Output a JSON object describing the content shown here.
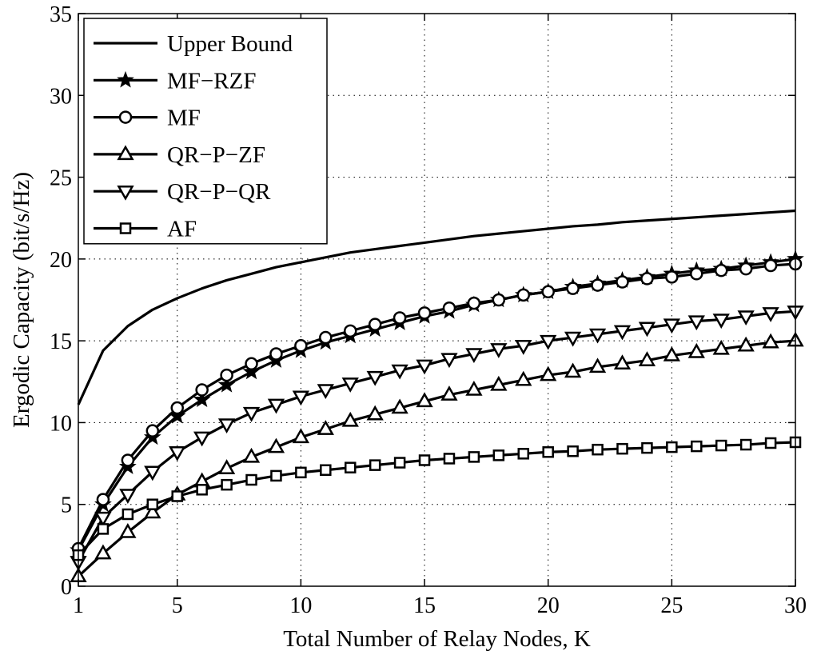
{
  "chart_data": {
    "type": "line",
    "xlabel": "Total Number of Relay Nodes, K",
    "ylabel": "Ergodic Capacity (bit/s/Hz)",
    "xlim": [
      1,
      30
    ],
    "ylim": [
      0,
      35
    ],
    "xticks": [
      1,
      5,
      10,
      15,
      20,
      25,
      30
    ],
    "yticks": [
      0,
      5,
      10,
      15,
      20,
      25,
      30,
      35
    ],
    "grid": true,
    "legend_position": "top-left",
    "x": [
      1,
      2,
      3,
      4,
      5,
      6,
      7,
      8,
      9,
      10,
      11,
      12,
      13,
      14,
      15,
      16,
      17,
      18,
      19,
      20,
      21,
      22,
      23,
      24,
      25,
      26,
      27,
      28,
      29,
      30
    ],
    "series": [
      {
        "name": "Upper Bound",
        "marker": "none",
        "values": [
          11.1,
          14.4,
          15.9,
          16.9,
          17.6,
          18.2,
          18.7,
          19.1,
          19.5,
          19.8,
          20.1,
          20.4,
          20.6,
          20.8,
          21.0,
          21.2,
          21.4,
          21.55,
          21.7,
          21.85,
          22.0,
          22.1,
          22.25,
          22.35,
          22.45,
          22.55,
          22.65,
          22.75,
          22.85,
          22.95
        ]
      },
      {
        "name": "MF−RZF",
        "marker": "star",
        "values": [
          2.2,
          5.0,
          7.3,
          9.1,
          10.4,
          11.4,
          12.3,
          13.1,
          13.8,
          14.4,
          14.9,
          15.3,
          15.7,
          16.1,
          16.5,
          16.8,
          17.2,
          17.5,
          17.8,
          18.0,
          18.3,
          18.5,
          18.7,
          18.9,
          19.1,
          19.3,
          19.4,
          19.6,
          19.8,
          20.0
        ]
      },
      {
        "name": "MF",
        "marker": "circle",
        "values": [
          2.3,
          5.3,
          7.7,
          9.5,
          10.9,
          12.0,
          12.9,
          13.6,
          14.2,
          14.7,
          15.2,
          15.6,
          16.0,
          16.4,
          16.7,
          17.0,
          17.3,
          17.5,
          17.8,
          18.0,
          18.2,
          18.4,
          18.6,
          18.8,
          18.9,
          19.1,
          19.3,
          19.4,
          19.6,
          19.7
        ]
      },
      {
        "name": "QR−P−ZF",
        "marker": "triangle-up",
        "values": [
          0.6,
          2.0,
          3.3,
          4.5,
          5.6,
          6.4,
          7.2,
          7.9,
          8.5,
          9.1,
          9.6,
          10.1,
          10.5,
          10.9,
          11.3,
          11.7,
          12.0,
          12.3,
          12.6,
          12.9,
          13.1,
          13.4,
          13.6,
          13.8,
          14.1,
          14.3,
          14.5,
          14.7,
          14.9,
          15.0
        ]
      },
      {
        "name": "QR−P−QR",
        "marker": "triangle-down",
        "values": [
          1.5,
          4.2,
          5.6,
          7.0,
          8.2,
          9.1,
          9.9,
          10.6,
          11.1,
          11.6,
          12.0,
          12.4,
          12.8,
          13.2,
          13.5,
          13.9,
          14.2,
          14.5,
          14.7,
          15.0,
          15.2,
          15.4,
          15.6,
          15.8,
          16.0,
          16.2,
          16.3,
          16.5,
          16.7,
          16.8
        ]
      },
      {
        "name": "AF",
        "marker": "square",
        "values": [
          1.9,
          3.5,
          4.4,
          5.0,
          5.5,
          5.9,
          6.2,
          6.5,
          6.75,
          6.95,
          7.1,
          7.25,
          7.4,
          7.55,
          7.7,
          7.8,
          7.9,
          8.0,
          8.1,
          8.2,
          8.25,
          8.35,
          8.4,
          8.45,
          8.5,
          8.55,
          8.6,
          8.65,
          8.75,
          8.8
        ]
      }
    ]
  }
}
